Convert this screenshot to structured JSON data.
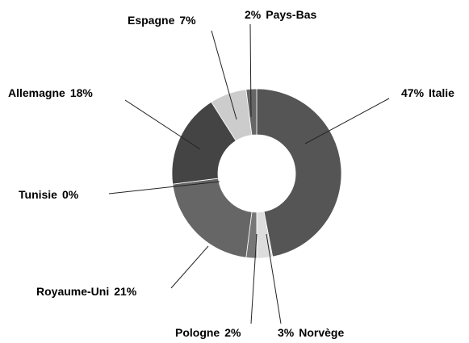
{
  "chart_data": {
    "type": "donut",
    "categories": [
      "Italie",
      "Norvège",
      "Pologne",
      "Royaume-Uni",
      "Tunisie",
      "Allemagne",
      "Espagne",
      "Pays-Bas"
    ],
    "values": [
      47,
      3,
      2,
      21,
      0,
      18,
      7,
      2
    ],
    "value_labels": [
      "47%",
      "3%",
      "2%",
      "21%",
      "0%",
      "18%",
      "7%",
      "2%"
    ],
    "colors": [
      "#555555",
      "#dddddd",
      "#777777",
      "#666666",
      "#cccccc",
      "#444444",
      "#cccccc",
      "#666666"
    ]
  }
}
